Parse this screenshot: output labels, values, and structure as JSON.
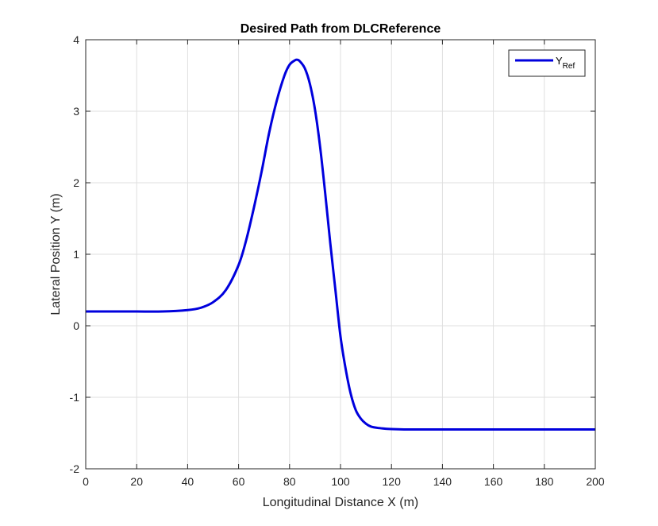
{
  "chart_data": {
    "type": "line",
    "title": "Desired Path from DLCReference",
    "xlabel": "Longitudinal Distance X (m)",
    "ylabel": "Lateral Position Y (m)",
    "xlim": [
      0,
      200
    ],
    "ylim": [
      -2,
      4
    ],
    "xticks": [
      0,
      20,
      40,
      60,
      80,
      100,
      120,
      140,
      160,
      180,
      200
    ],
    "yticks": [
      -2,
      -1,
      0,
      1,
      2,
      3,
      4
    ],
    "grid": true,
    "legend": {
      "placement": "top-right",
      "entries": [
        {
          "main": "Y",
          "sub": "Ref"
        }
      ]
    },
    "series": [
      {
        "name": "Y_Ref",
        "color": "#0000dd",
        "x": [
          0,
          10,
          20,
          30,
          40,
          45,
          50,
          55,
          60,
          63,
          66,
          69,
          72,
          75,
          78,
          80,
          82,
          83,
          84,
          86,
          88,
          90,
          92,
          94,
          96,
          98,
          100,
          102,
          104,
          106,
          108,
          110,
          112,
          115,
          118,
          120,
          125,
          130,
          140,
          160,
          180,
          200
        ],
        "y": [
          0.2,
          0.2,
          0.2,
          0.2,
          0.22,
          0.25,
          0.33,
          0.5,
          0.85,
          1.2,
          1.65,
          2.15,
          2.7,
          3.15,
          3.5,
          3.65,
          3.71,
          3.72,
          3.7,
          3.6,
          3.38,
          3.02,
          2.5,
          1.85,
          1.15,
          0.5,
          -0.15,
          -0.6,
          -0.95,
          -1.18,
          -1.3,
          -1.37,
          -1.41,
          -1.43,
          -1.44,
          -1.445,
          -1.45,
          -1.45,
          -1.45,
          -1.45,
          -1.45,
          -1.45
        ]
      }
    ]
  }
}
